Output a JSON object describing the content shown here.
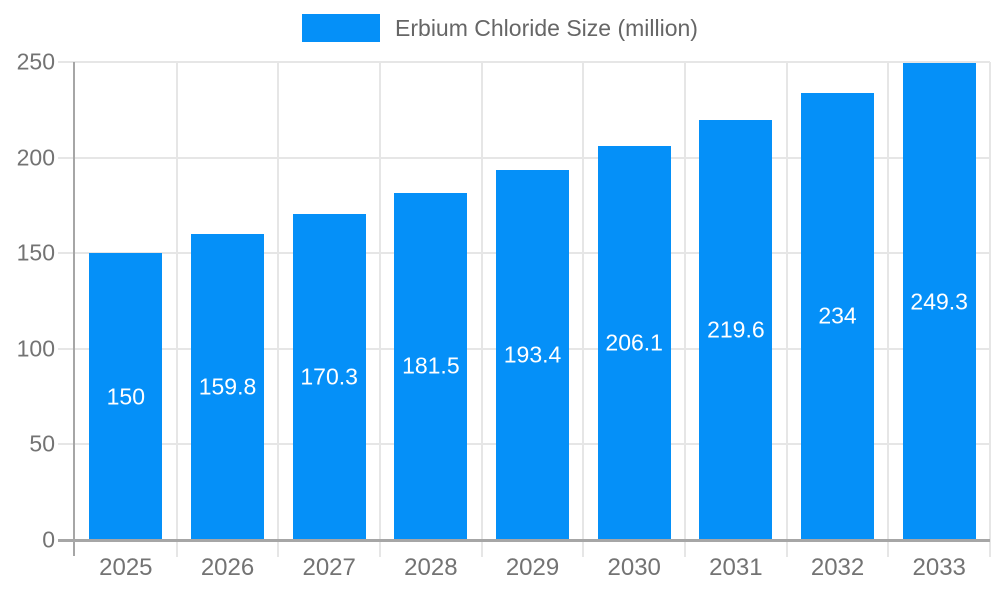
{
  "chart_data": {
    "type": "bar",
    "title": "Erbium Chloride Size (million)",
    "categories": [
      "2025",
      "2026",
      "2027",
      "2028",
      "2029",
      "2030",
      "2031",
      "2032",
      "2033"
    ],
    "values": [
      150,
      159.8,
      170.3,
      181.5,
      193.4,
      206.1,
      219.6,
      234,
      249.3
    ],
    "series": [
      {
        "name": "Erbium Chloride Size (million)",
        "values": [
          150,
          159.8,
          170.3,
          181.5,
          193.4,
          206.1,
          219.6,
          234,
          249.3
        ]
      }
    ],
    "xlabel": "",
    "ylabel": "",
    "ylim": [
      0,
      250
    ],
    "yticks": [
      0,
      50,
      100,
      150,
      200,
      250
    ],
    "grid": true,
    "legend_position": "top-center",
    "value_labels": "inside-bar-centered",
    "colors": {
      "bar": "#0590f8",
      "bar_label_text": "#ffffff",
      "axis_text": "#737373",
      "legend_text": "#666666",
      "axis_line": "#a6a6a6",
      "gridline": "#e6e6e6",
      "background": "#ffffff"
    }
  }
}
